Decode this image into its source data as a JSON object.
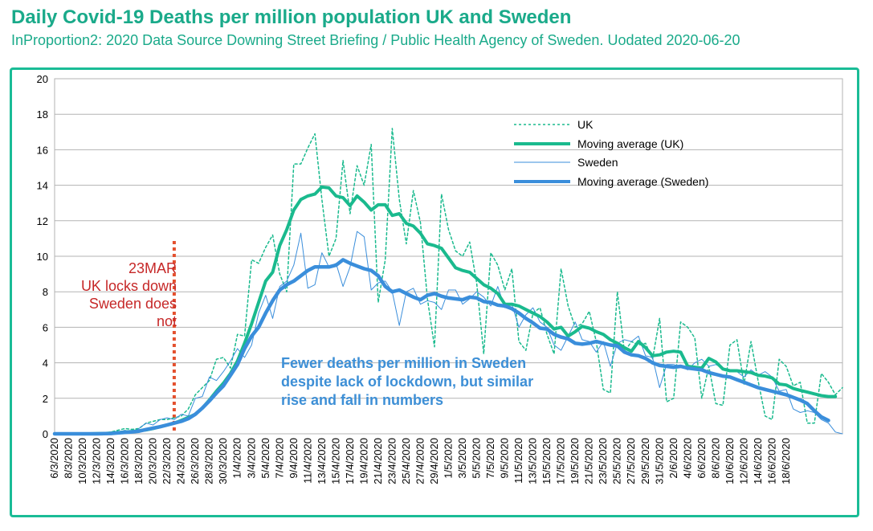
{
  "header": {
    "title": "Daily Covid-19 Deaths per million population UK and Sweden",
    "subtitle": "InProportion2: 2020 Data Source Downing Street Briefing / Public Health Agency of Sweden. Uodated 2020-06-20"
  },
  "annotations": {
    "lockdown_lines": [
      "23MAR",
      "UK locks down",
      "Sweden does",
      "not"
    ],
    "note_lines": [
      "Fewer deaths per million in Sweden",
      "despite lack of lockdown, but similar",
      "rise and fall in numbers"
    ],
    "lockdown_marker_date": "23/3/2020"
  },
  "colors": {
    "uk": "#1aba8e",
    "sweden": "#3a8edb",
    "marker": "#e3502e",
    "frame": "#1abc96",
    "title": "#1aaa8a"
  },
  "chart_data": {
    "type": "line",
    "x_start": "6/3/2020",
    "x_tick_labels": [
      "6/3/2020",
      "8/3/2020",
      "10/3/2020",
      "12/3/2020",
      "14/3/2020",
      "16/3/2020",
      "18/3/2020",
      "20/3/2020",
      "22/3/2020",
      "24/3/2020",
      "26/3/2020",
      "28/3/2020",
      "30/3/2020",
      "1/4/2020",
      "3/4/2020",
      "5/4/2020",
      "7/4/2020",
      "9/4/2020",
      "11/4/2020",
      "13/4/2020",
      "15/4/2020",
      "17/4/2020",
      "19/4/2020",
      "21/4/2020",
      "23/4/2020",
      "25/4/2020",
      "27/4/2020",
      "29/4/2020",
      "1/5/2020",
      "3/5/2020",
      "5/5/2020",
      "7/5/2020",
      "9/5/2020",
      "11/5/2020",
      "13/5/2020",
      "15/5/2020",
      "17/5/2020",
      "19/5/2020",
      "21/5/2020",
      "23/5/2020",
      "25/5/2020",
      "27/5/2020",
      "29/5/2020",
      "31/5/2020",
      "2/6/2020",
      "4/6/2020",
      "6/6/2020",
      "8/6/2020",
      "10/6/2020",
      "12/6/2020",
      "14/6/2020",
      "16/6/2020",
      "18/6/2020"
    ],
    "ylim": [
      0,
      20
    ],
    "y_ticks": [
      0,
      2,
      4,
      6,
      8,
      10,
      12,
      14,
      16,
      18,
      20
    ],
    "grid": true,
    "legend_position": "top-right",
    "series": [
      {
        "name": "UK",
        "style": "dotted",
        "values": [
          0,
          0,
          0,
          0,
          0,
          0,
          0.02,
          0.05,
          0.1,
          0.2,
          0.3,
          0.25,
          0.3,
          0.6,
          0.7,
          0.8,
          0.8,
          0.9,
          1.0,
          1.4,
          2.2,
          2.6,
          3.0,
          4.2,
          4.3,
          3.7,
          5.6,
          5.5,
          9.8,
          9.6,
          10.5,
          11.2,
          9.0,
          8.0,
          15.2,
          15.2,
          16.1,
          16.9,
          13.2,
          10.0,
          11.0,
          15.4,
          12.4,
          15.1,
          14.0,
          16.3,
          7.4,
          9.8,
          17.2,
          13.2,
          10.7,
          13.7,
          11.9,
          7.6,
          4.9,
          13.5,
          11.5,
          10.3,
          10.0,
          10.8,
          8.5,
          4.5,
          10.2,
          9.5,
          8.1,
          9.3,
          5.2,
          4.7,
          6.8,
          7.1,
          5.6,
          4.5,
          9.3,
          7.2,
          6.0,
          6.2,
          6.9,
          5.2,
          2.5,
          2.3,
          8.0,
          4.6,
          5.2,
          5.0,
          5.1,
          4.2,
          6.5,
          1.8,
          2.0,
          6.3,
          6.0,
          5.4,
          2.0,
          3.8,
          1.7,
          1.6,
          5.0,
          5.3,
          2.8,
          5.2,
          3.0,
          1.0,
          0.8,
          4.2,
          3.8,
          2.7,
          2.9,
          0.6,
          0.6,
          3.4,
          2.9,
          2.2,
          2.6
        ]
      },
      {
        "name": "Moving average (UK)",
        "style": "thick",
        "values": [
          0,
          0,
          0,
          0,
          0,
          0,
          0.01,
          0.02,
          0.04,
          0.07,
          0.1,
          0.13,
          0.17,
          0.22,
          0.3,
          0.4,
          0.5,
          0.6,
          0.75,
          0.92,
          1.1,
          1.45,
          1.9,
          2.4,
          2.85,
          3.4,
          4.1,
          5.1,
          6.2,
          7.4,
          8.6,
          9.1,
          10.6,
          11.5,
          12.6,
          13.2,
          13.4,
          13.5,
          13.9,
          13.85,
          13.4,
          13.3,
          12.85,
          13.4,
          13.05,
          12.6,
          12.9,
          12.9,
          12.3,
          12.4,
          11.85,
          11.7,
          11.3,
          10.7,
          10.6,
          10.45,
          9.9,
          9.35,
          9.2,
          9.1,
          8.75,
          8.4,
          8.2,
          7.9,
          7.3,
          7.3,
          7.2,
          7.0,
          6.8,
          6.6,
          6.3,
          5.9,
          6.0,
          5.5,
          5.75,
          6.05,
          5.95,
          5.75,
          5.6,
          5.3,
          5.1,
          4.85,
          4.65,
          5.2,
          4.85,
          4.4,
          4.45,
          4.6,
          4.65,
          4.6,
          3.8,
          3.75,
          3.7,
          4.25,
          4.05,
          3.65,
          3.55,
          3.55,
          3.5,
          3.45,
          3.3,
          3.25,
          3.15,
          2.8,
          2.75,
          2.55,
          2.45,
          2.35,
          2.25,
          2.15,
          2.1,
          2.1
        ]
      },
      {
        "name": "Sweden",
        "style": "thin",
        "values": [
          0,
          0,
          0,
          0,
          0,
          0,
          0,
          0.02,
          0.05,
          0.1,
          0.2,
          0.1,
          0.3,
          0.6,
          0.5,
          0.8,
          0.9,
          0.8,
          1.1,
          1.0,
          2.0,
          2.1,
          3.2,
          3.0,
          3.5,
          4.1,
          4.8,
          4.3,
          5.0,
          6.8,
          7.8,
          6.5,
          8.3,
          8.6,
          9.5,
          11.3,
          8.2,
          8.4,
          10.2,
          9.4,
          9.6,
          8.3,
          9.4,
          11.4,
          11.1,
          8.1,
          8.5,
          8.6,
          8.0,
          6.1,
          8.0,
          8.2,
          7.3,
          7.5,
          7.4,
          7.0,
          8.1,
          8.1,
          7.3,
          7.6,
          8.0,
          7.7,
          7.2,
          8.3,
          7.1,
          7.3,
          6.0,
          6.7,
          7.1,
          6.3,
          6.0,
          5.0,
          4.7,
          5.5,
          6.3,
          5.3,
          5.2,
          4.6,
          5.2,
          3.8,
          5.1,
          5.3,
          5.2,
          5.5,
          4.4,
          4.3,
          2.6,
          3.9,
          3.9,
          3.8,
          3.6,
          4.0,
          4.2,
          3.8,
          3.9,
          3.7,
          3.6,
          3.5,
          3.2,
          3.6,
          3.3,
          3.5,
          3.2,
          2.4,
          2.5,
          1.4,
          1.2,
          1.3,
          1.2,
          0.8,
          0.6,
          0.1,
          0
        ]
      },
      {
        "name": "Moving average (Sweden)",
        "style": "thick",
        "values": [
          0,
          0,
          0,
          0,
          0,
          0,
          0,
          0.01,
          0.02,
          0.05,
          0.08,
          0.11,
          0.15,
          0.24,
          0.32,
          0.4,
          0.5,
          0.6,
          0.7,
          0.85,
          1.1,
          1.45,
          1.85,
          2.3,
          2.7,
          3.3,
          3.9,
          4.8,
          5.5,
          6.0,
          6.8,
          7.5,
          8.1,
          8.4,
          8.6,
          8.9,
          9.2,
          9.4,
          9.4,
          9.4,
          9.5,
          9.8,
          9.6,
          9.45,
          9.3,
          9.2,
          8.9,
          8.3,
          8.0,
          8.1,
          7.9,
          7.7,
          7.55,
          7.8,
          7.9,
          7.75,
          7.65,
          7.6,
          7.55,
          7.7,
          7.65,
          7.45,
          7.4,
          7.25,
          7.2,
          7.05,
          6.8,
          6.5,
          6.25,
          5.95,
          5.9,
          5.6,
          5.45,
          5.35,
          5.1,
          5.05,
          5.1,
          5.2,
          5.1,
          5.0,
          4.95,
          4.6,
          4.45,
          4.4,
          4.25,
          4.0,
          3.85,
          3.8,
          3.75,
          3.8,
          3.7,
          3.65,
          3.6,
          3.45,
          3.35,
          3.25,
          3.2,
          3.05,
          2.9,
          2.75,
          2.6,
          2.5,
          2.4,
          2.3,
          2.2,
          2.05,
          1.9,
          1.7,
          1.3,
          0.95,
          0.75
        ]
      }
    ]
  }
}
